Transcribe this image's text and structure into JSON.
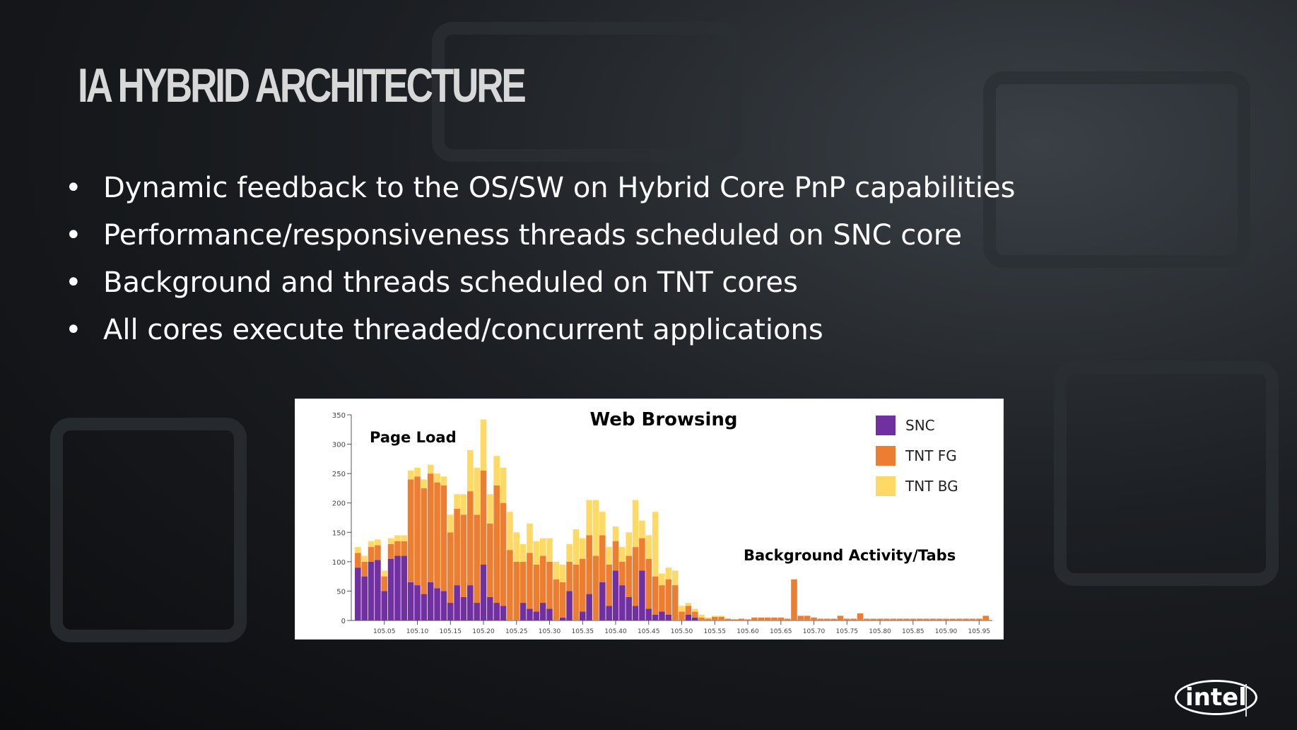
{
  "slide": {
    "title": "IA HYBRID ARCHITECTURE",
    "bullets": [
      "Dynamic feedback to the OS/SW on Hybrid Core PnP capabilities",
      "Performance/responsiveness threads scheduled on SNC core",
      "Background and threads scheduled on TNT cores",
      "All cores execute threaded/concurrent applications"
    ],
    "logo": "intel"
  },
  "chart_data": {
    "type": "stacked-bar",
    "title": "Web Browsing",
    "annotations": [
      "Page Load",
      "Background Activity/Tabs"
    ],
    "x": [
      105.01,
      105.02,
      105.03,
      105.04,
      105.05,
      105.06,
      105.07,
      105.08,
      105.09,
      105.1,
      105.11,
      105.12,
      105.13,
      105.14,
      105.15,
      105.16,
      105.17,
      105.18,
      105.19,
      105.2,
      105.21,
      105.22,
      105.23,
      105.24,
      105.25,
      105.26,
      105.27,
      105.28,
      105.29,
      105.3,
      105.31,
      105.32,
      105.33,
      105.34,
      105.35,
      105.36,
      105.37,
      105.38,
      105.39,
      105.4,
      105.41,
      105.42,
      105.43,
      105.44,
      105.45,
      105.46,
      105.47,
      105.48,
      105.49,
      105.5,
      105.51,
      105.52,
      105.53,
      105.54,
      105.55,
      105.56,
      105.57,
      105.58,
      105.59,
      105.6,
      105.61,
      105.62,
      105.63,
      105.64,
      105.65,
      105.66,
      105.67,
      105.68,
      105.69,
      105.7,
      105.71,
      105.72,
      105.73,
      105.74,
      105.75,
      105.76,
      105.77,
      105.78,
      105.79,
      105.8,
      105.81,
      105.82,
      105.83,
      105.84,
      105.85,
      105.86,
      105.87,
      105.88,
      105.89,
      105.9,
      105.91,
      105.92,
      105.93,
      105.94,
      105.95,
      105.96
    ],
    "series": [
      {
        "name": "SNC",
        "color": "#7030a0",
        "values": [
          90,
          75,
          100,
          103,
          50,
          105,
          110,
          110,
          65,
          60,
          45,
          65,
          55,
          50,
          30,
          60,
          40,
          60,
          30,
          95,
          40,
          30,
          25,
          0,
          0,
          30,
          20,
          15,
          30,
          20,
          0,
          5,
          50,
          0,
          15,
          45,
          0,
          65,
          25,
          85,
          60,
          40,
          25,
          85,
          20,
          10,
          15,
          10,
          0,
          0,
          10,
          5,
          0,
          0,
          0,
          0,
          0,
          0,
          0,
          0,
          0,
          0,
          0,
          0,
          0,
          0,
          0,
          0,
          0,
          0,
          0,
          0,
          0,
          0,
          0,
          0,
          0,
          0,
          0,
          0,
          0,
          0,
          0,
          0,
          0,
          0,
          0,
          0,
          0,
          0,
          0,
          0,
          0,
          0,
          0,
          0
        ]
      },
      {
        "name": "TNT FG",
        "color": "#ed7d31",
        "values": [
          25,
          25,
          25,
          25,
          25,
          25,
          25,
          25,
          175,
          185,
          180,
          185,
          180,
          180,
          120,
          130,
          140,
          160,
          150,
          160,
          125,
          200,
          175,
          120,
          100,
          70,
          95,
          80,
          80,
          80,
          70,
          60,
          50,
          95,
          90,
          100,
          110,
          80,
          70,
          50,
          40,
          70,
          100,
          55,
          85,
          65,
          45,
          60,
          60,
          15,
          15,
          10,
          5,
          3,
          6,
          6,
          3,
          2,
          3,
          2,
          5,
          5,
          5,
          5,
          5,
          3,
          70,
          8,
          8,
          5,
          3,
          3,
          3,
          8,
          3,
          3,
          12,
          3,
          3,
          3,
          3,
          3,
          3,
          3,
          3,
          3,
          3,
          3,
          3,
          3,
          3,
          3,
          3,
          3,
          3,
          8
        ]
      },
      {
        "name": "TNT BG",
        "color": "#ffd966",
        "values": [
          10,
          10,
          10,
          10,
          10,
          10,
          10,
          10,
          15,
          15,
          15,
          15,
          15,
          15,
          30,
          25,
          35,
          70,
          80,
          87,
          50,
          50,
          60,
          65,
          50,
          30,
          50,
          40,
          30,
          40,
          30,
          30,
          30,
          60,
          35,
          60,
          95,
          40,
          30,
          25,
          25,
          40,
          80,
          30,
          40,
          110,
          20,
          20,
          25,
          10,
          5,
          5,
          5,
          2,
          2,
          2,
          0,
          0,
          0,
          0,
          0,
          0,
          0,
          0,
          0,
          0,
          0,
          0,
          0,
          0,
          0,
          0,
          0,
          0,
          0,
          0,
          0,
          0,
          0,
          0,
          0,
          0,
          0,
          0,
          0,
          0,
          0,
          0,
          0,
          0,
          0,
          0,
          0,
          0,
          0,
          0
        ]
      }
    ],
    "xlim": [
      105.0,
      105.97
    ],
    "xticks": [
      105.05,
      {
        "value": 105.1,
        "label": "105.10"
      },
      105.15,
      {
        "value": 105.2,
        "label": "105.20"
      },
      105.25,
      {
        "value": 105.3,
        "label": "105.30"
      },
      105.35,
      {
        "value": 105.4,
        "label": "105.40"
      },
      105.45,
      {
        "value": 105.5,
        "label": "105.50"
      },
      105.55,
      {
        "value": 105.6,
        "label": "105.60"
      },
      105.65,
      {
        "value": 105.7,
        "label": "105.70"
      },
      105.75,
      {
        "value": 105.8,
        "label": "105.80"
      },
      105.85,
      {
        "value": 105.9,
        "label": "105.90"
      },
      105.95
    ],
    "ylim": [
      0,
      350
    ],
    "yticks": [
      0,
      50,
      100,
      150,
      200,
      250,
      300,
      350
    ],
    "legend": "top-right"
  }
}
